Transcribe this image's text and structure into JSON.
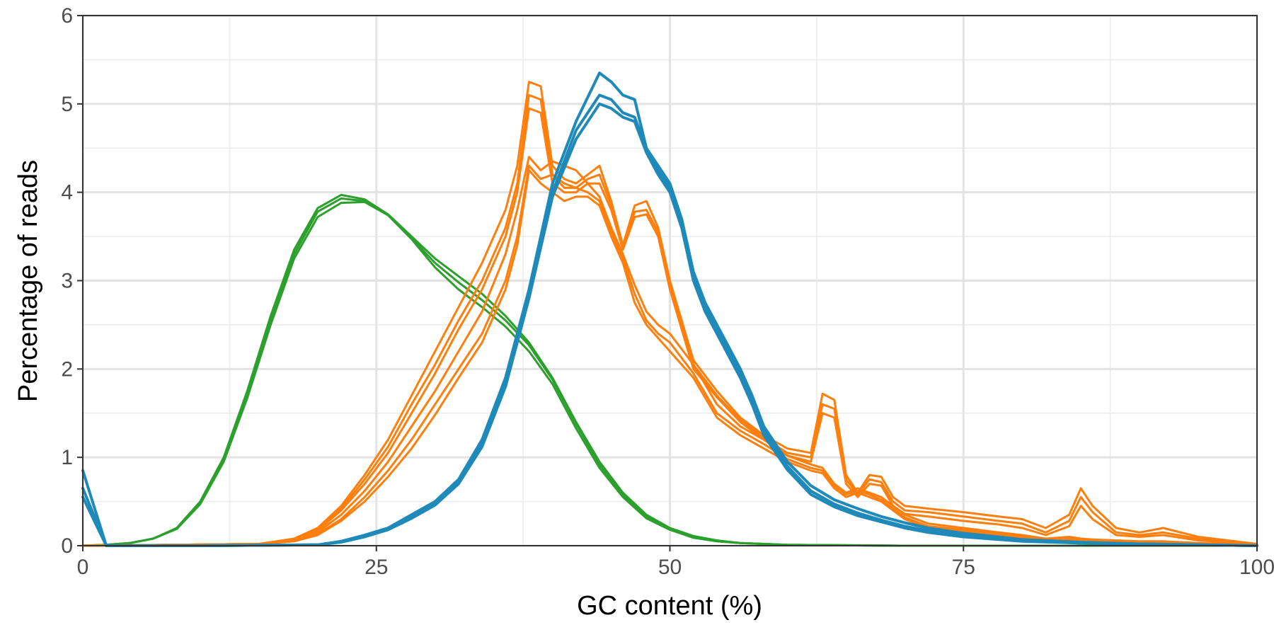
{
  "chart_data": {
    "type": "line",
    "xlabel": "GC content (%)",
    "ylabel": "Percentage of reads",
    "xlim": [
      0,
      100
    ],
    "ylim": [
      0,
      6
    ],
    "xticks": [
      "0",
      "25",
      "50",
      "75",
      "100"
    ],
    "yticks": [
      "0",
      "1",
      "2",
      "3",
      "4",
      "5",
      "6"
    ],
    "grid": true,
    "legend": "none",
    "colors": {
      "green": "#2ca02c",
      "orange": "#ff7f0e",
      "blue": "#1f8ab9"
    },
    "series": [
      {
        "group": "green",
        "x": [
          0,
          2,
          4,
          6,
          8,
          10,
          12,
          14,
          16,
          18,
          20,
          22,
          24,
          26,
          28,
          30,
          32,
          34,
          36,
          38,
          40,
          42,
          44,
          46,
          48,
          50,
          52,
          54,
          56,
          58,
          60,
          65,
          70,
          80,
          90,
          100
        ],
        "y": [
          0,
          0.01,
          0.03,
          0.08,
          0.2,
          0.5,
          1.0,
          1.75,
          2.6,
          3.35,
          3.82,
          3.97,
          3.92,
          3.75,
          3.5,
          3.25,
          3.05,
          2.85,
          2.6,
          2.3,
          1.9,
          1.4,
          0.95,
          0.6,
          0.35,
          0.2,
          0.11,
          0.06,
          0.03,
          0.02,
          0.01,
          0.005,
          0,
          0,
          0,
          0
        ]
      },
      {
        "group": "green",
        "x": [
          0,
          2,
          4,
          6,
          8,
          10,
          12,
          14,
          16,
          18,
          20,
          22,
          24,
          26,
          28,
          30,
          32,
          34,
          36,
          38,
          40,
          42,
          44,
          46,
          48,
          50,
          52,
          54,
          56,
          58,
          60,
          65,
          70,
          80,
          90,
          100
        ],
        "y": [
          0,
          0.01,
          0.03,
          0.08,
          0.19,
          0.48,
          0.97,
          1.7,
          2.55,
          3.3,
          3.78,
          3.93,
          3.9,
          3.74,
          3.48,
          3.2,
          2.98,
          2.78,
          2.55,
          2.27,
          1.88,
          1.38,
          0.92,
          0.58,
          0.33,
          0.19,
          0.1,
          0.05,
          0.03,
          0.02,
          0.01,
          0.005,
          0,
          0,
          0,
          0
        ]
      },
      {
        "group": "green",
        "x": [
          0,
          2,
          4,
          6,
          8,
          10,
          12,
          14,
          16,
          18,
          20,
          22,
          24,
          26,
          28,
          30,
          32,
          34,
          36,
          38,
          40,
          42,
          44,
          46,
          48,
          50,
          52,
          54,
          56,
          58,
          60,
          65,
          70,
          80,
          90,
          100
        ],
        "y": [
          0,
          0.01,
          0.03,
          0.08,
          0.19,
          0.47,
          0.95,
          1.67,
          2.5,
          3.25,
          3.72,
          3.88,
          3.89,
          3.74,
          3.47,
          3.15,
          2.9,
          2.7,
          2.48,
          2.2,
          1.83,
          1.33,
          0.88,
          0.55,
          0.31,
          0.18,
          0.09,
          0.05,
          0.03,
          0.02,
          0.01,
          0.005,
          0,
          0,
          0,
          0
        ]
      },
      {
        "group": "orange",
        "x": [
          0,
          15,
          18,
          20,
          22,
          24,
          26,
          28,
          30,
          32,
          34,
          36,
          37,
          38,
          39,
          40,
          41,
          42,
          43,
          44,
          45,
          46,
          47,
          48,
          49,
          50,
          52,
          54,
          56,
          58,
          60,
          62,
          63,
          64,
          65,
          66,
          67,
          68,
          69,
          70,
          72,
          75,
          78,
          80,
          82,
          84,
          85,
          86,
          88,
          90,
          92,
          95,
          100
        ],
        "y": [
          0,
          0.02,
          0.08,
          0.2,
          0.45,
          0.8,
          1.2,
          1.7,
          2.2,
          2.7,
          3.2,
          3.8,
          4.3,
          5.25,
          5.2,
          4.3,
          4.15,
          4.1,
          4.2,
          4.3,
          3.9,
          3.4,
          3.85,
          3.9,
          3.6,
          3.0,
          2.1,
          1.75,
          1.45,
          1.25,
          1.1,
          1.05,
          1.72,
          1.65,
          0.8,
          0.6,
          0.8,
          0.78,
          0.55,
          0.45,
          0.42,
          0.38,
          0.33,
          0.3,
          0.2,
          0.35,
          0.65,
          0.45,
          0.2,
          0.15,
          0.2,
          0.1,
          0.02
        ]
      },
      {
        "group": "orange",
        "x": [
          0,
          15,
          18,
          20,
          22,
          24,
          26,
          28,
          30,
          32,
          34,
          36,
          37,
          38,
          39,
          40,
          41,
          42,
          43,
          44,
          45,
          46,
          47,
          48,
          49,
          50,
          52,
          54,
          56,
          58,
          60,
          62,
          63,
          64,
          65,
          66,
          67,
          68,
          69,
          70,
          72,
          75,
          78,
          80,
          82,
          84,
          85,
          86,
          88,
          90,
          92,
          95,
          100
        ],
        "y": [
          0,
          0.02,
          0.07,
          0.18,
          0.42,
          0.75,
          1.12,
          1.6,
          2.05,
          2.55,
          3.0,
          3.6,
          4.1,
          5.1,
          5.05,
          4.2,
          4.05,
          4.05,
          4.15,
          4.2,
          3.85,
          3.38,
          3.78,
          3.8,
          3.55,
          2.95,
          2.05,
          1.7,
          1.42,
          1.22,
          1.05,
          1.0,
          1.6,
          1.55,
          0.75,
          0.58,
          0.75,
          0.72,
          0.5,
          0.4,
          0.38,
          0.33,
          0.28,
          0.25,
          0.15,
          0.28,
          0.55,
          0.38,
          0.15,
          0.12,
          0.15,
          0.08,
          0.02
        ]
      },
      {
        "group": "orange",
        "x": [
          0,
          15,
          18,
          20,
          22,
          24,
          26,
          28,
          30,
          32,
          34,
          36,
          37,
          38,
          39,
          40,
          41,
          42,
          43,
          44,
          45,
          46,
          47,
          48,
          49,
          50,
          52,
          54,
          56,
          58,
          60,
          62,
          63,
          64,
          65,
          66,
          67,
          68,
          69,
          70,
          72,
          75,
          78,
          80,
          82,
          84,
          85,
          86,
          88,
          90,
          92,
          95,
          100
        ],
        "y": [
          0,
          0.02,
          0.07,
          0.17,
          0.4,
          0.7,
          1.05,
          1.5,
          1.95,
          2.45,
          2.9,
          3.5,
          4.0,
          4.95,
          4.9,
          4.1,
          4.0,
          4.0,
          4.1,
          4.1,
          3.8,
          3.35,
          3.72,
          3.75,
          3.5,
          2.9,
          2.0,
          1.68,
          1.4,
          1.2,
          1.02,
          0.95,
          1.5,
          1.45,
          0.7,
          0.55,
          0.7,
          0.68,
          0.45,
          0.36,
          0.33,
          0.28,
          0.24,
          0.2,
          0.12,
          0.22,
          0.45,
          0.3,
          0.12,
          0.1,
          0.12,
          0.06,
          0.01
        ]
      },
      {
        "group": "orange",
        "x": [
          0,
          15,
          18,
          20,
          22,
          24,
          26,
          28,
          30,
          32,
          34,
          36,
          37,
          38,
          39,
          40,
          41,
          42,
          43,
          44,
          45,
          46,
          47,
          48,
          49,
          50,
          52,
          54,
          56,
          58,
          60,
          62,
          63,
          64,
          65,
          66,
          67,
          68,
          69,
          70,
          72,
          75,
          78,
          80,
          82,
          84,
          85,
          86,
          88,
          90,
          92,
          95,
          100
        ],
        "y": [
          0,
          0.02,
          0.06,
          0.15,
          0.35,
          0.62,
          0.95,
          1.35,
          1.75,
          2.2,
          2.65,
          3.3,
          3.8,
          4.4,
          4.25,
          4.35,
          4.3,
          4.25,
          4.1,
          3.95,
          3.6,
          3.3,
          2.95,
          2.65,
          2.5,
          2.4,
          2.05,
          1.6,
          1.35,
          1.2,
          1.02,
          0.92,
          0.88,
          0.7,
          0.6,
          0.65,
          0.6,
          0.55,
          0.45,
          0.35,
          0.25,
          0.2,
          0.15,
          0.12,
          0.08,
          0.1,
          0.08,
          0.07,
          0.06,
          0.05,
          0.05,
          0.03,
          0.01
        ]
      },
      {
        "group": "orange",
        "x": [
          0,
          15,
          18,
          20,
          22,
          24,
          26,
          28,
          30,
          32,
          34,
          36,
          37,
          38,
          39,
          40,
          41,
          42,
          43,
          44,
          45,
          46,
          47,
          48,
          49,
          50,
          52,
          54,
          56,
          58,
          60,
          62,
          63,
          64,
          65,
          66,
          67,
          68,
          69,
          70,
          72,
          75,
          78,
          80,
          82,
          84,
          85,
          86,
          88,
          90,
          92,
          95,
          100
        ],
        "y": [
          0,
          0.02,
          0.05,
          0.13,
          0.3,
          0.55,
          0.85,
          1.2,
          1.6,
          2.0,
          2.4,
          3.0,
          3.5,
          4.3,
          4.15,
          4.2,
          4.1,
          4.05,
          4.0,
          3.9,
          3.55,
          3.25,
          2.85,
          2.55,
          2.4,
          2.3,
          1.95,
          1.5,
          1.3,
          1.15,
          0.98,
          0.88,
          0.85,
          0.68,
          0.58,
          0.62,
          0.58,
          0.52,
          0.42,
          0.32,
          0.22,
          0.18,
          0.13,
          0.1,
          0.07,
          0.08,
          0.07,
          0.06,
          0.05,
          0.04,
          0.04,
          0.02,
          0.01
        ]
      },
      {
        "group": "orange",
        "x": [
          0,
          15,
          18,
          20,
          22,
          24,
          26,
          28,
          30,
          32,
          34,
          36,
          37,
          38,
          39,
          40,
          41,
          42,
          43,
          44,
          45,
          46,
          47,
          48,
          49,
          50,
          52,
          54,
          56,
          58,
          60,
          62,
          63,
          64,
          65,
          66,
          67,
          68,
          69,
          70,
          72,
          75,
          78,
          80,
          82,
          84,
          85,
          86,
          88,
          90,
          92,
          95,
          100
        ],
        "y": [
          0,
          0.02,
          0.05,
          0.12,
          0.28,
          0.5,
          0.78,
          1.1,
          1.48,
          1.9,
          2.3,
          2.9,
          3.4,
          4.25,
          4.1,
          4.0,
          3.9,
          3.95,
          3.95,
          3.85,
          3.5,
          3.2,
          2.75,
          2.5,
          2.35,
          2.2,
          1.9,
          1.45,
          1.25,
          1.1,
          0.95,
          0.85,
          0.82,
          0.65,
          0.55,
          0.6,
          0.55,
          0.5,
          0.4,
          0.3,
          0.2,
          0.16,
          0.12,
          0.09,
          0.06,
          0.07,
          0.06,
          0.05,
          0.04,
          0.03,
          0.03,
          0.02,
          0.01
        ]
      },
      {
        "group": "blue",
        "x": [
          0,
          2,
          4,
          10,
          20,
          22,
          24,
          26,
          28,
          30,
          32,
          34,
          36,
          38,
          40,
          42,
          44,
          45,
          46,
          47,
          48,
          49,
          50,
          51,
          52,
          53,
          54,
          55,
          56,
          57,
          58,
          60,
          62,
          64,
          66,
          68,
          70,
          72,
          75,
          78,
          80,
          85,
          90,
          95,
          100
        ],
        "y": [
          0.85,
          0,
          0,
          0,
          0.01,
          0.05,
          0.12,
          0.2,
          0.35,
          0.5,
          0.75,
          1.2,
          1.9,
          2.9,
          4.1,
          4.8,
          5.35,
          5.25,
          5.1,
          5.05,
          4.5,
          4.3,
          4.1,
          3.7,
          3.1,
          2.75,
          2.5,
          2.25,
          2.0,
          1.7,
          1.35,
          0.95,
          0.68,
          0.52,
          0.42,
          0.33,
          0.26,
          0.2,
          0.14,
          0.1,
          0.07,
          0.04,
          0.02,
          0.01,
          0
        ]
      },
      {
        "group": "blue",
        "x": [
          0,
          2,
          4,
          10,
          20,
          22,
          24,
          26,
          28,
          30,
          32,
          34,
          36,
          38,
          40,
          42,
          44,
          45,
          46,
          47,
          48,
          49,
          50,
          51,
          52,
          53,
          54,
          55,
          56,
          57,
          58,
          60,
          62,
          64,
          66,
          68,
          70,
          72,
          75,
          78,
          80,
          85,
          90,
          95,
          100
        ],
        "y": [
          0.65,
          0,
          0,
          0,
          0.01,
          0.05,
          0.11,
          0.19,
          0.33,
          0.48,
          0.72,
          1.15,
          1.85,
          2.85,
          4.0,
          4.7,
          5.1,
          5.05,
          4.9,
          4.85,
          4.5,
          4.25,
          4.05,
          3.65,
          3.05,
          2.7,
          2.45,
          2.2,
          1.95,
          1.65,
          1.3,
          0.9,
          0.62,
          0.47,
          0.37,
          0.29,
          0.22,
          0.17,
          0.11,
          0.08,
          0.06,
          0.03,
          0.02,
          0.01,
          0
        ]
      },
      {
        "group": "blue",
        "x": [
          0,
          2,
          4,
          10,
          20,
          22,
          24,
          26,
          28,
          30,
          32,
          34,
          36,
          38,
          40,
          42,
          44,
          45,
          46,
          47,
          48,
          49,
          50,
          51,
          52,
          53,
          54,
          55,
          56,
          57,
          58,
          60,
          62,
          64,
          66,
          68,
          70,
          72,
          75,
          78,
          80,
          85,
          90,
          95,
          100
        ],
        "y": [
          0.55,
          0,
          0,
          0,
          0.01,
          0.04,
          0.1,
          0.18,
          0.31,
          0.46,
          0.7,
          1.12,
          1.8,
          2.8,
          3.95,
          4.6,
          5.0,
          4.95,
          4.85,
          4.8,
          4.45,
          4.2,
          4.0,
          3.6,
          3.0,
          2.65,
          2.4,
          2.15,
          1.9,
          1.6,
          1.25,
          0.86,
          0.58,
          0.44,
          0.34,
          0.27,
          0.2,
          0.15,
          0.1,
          0.07,
          0.05,
          0.03,
          0.02,
          0.01,
          0
        ]
      }
    ]
  }
}
